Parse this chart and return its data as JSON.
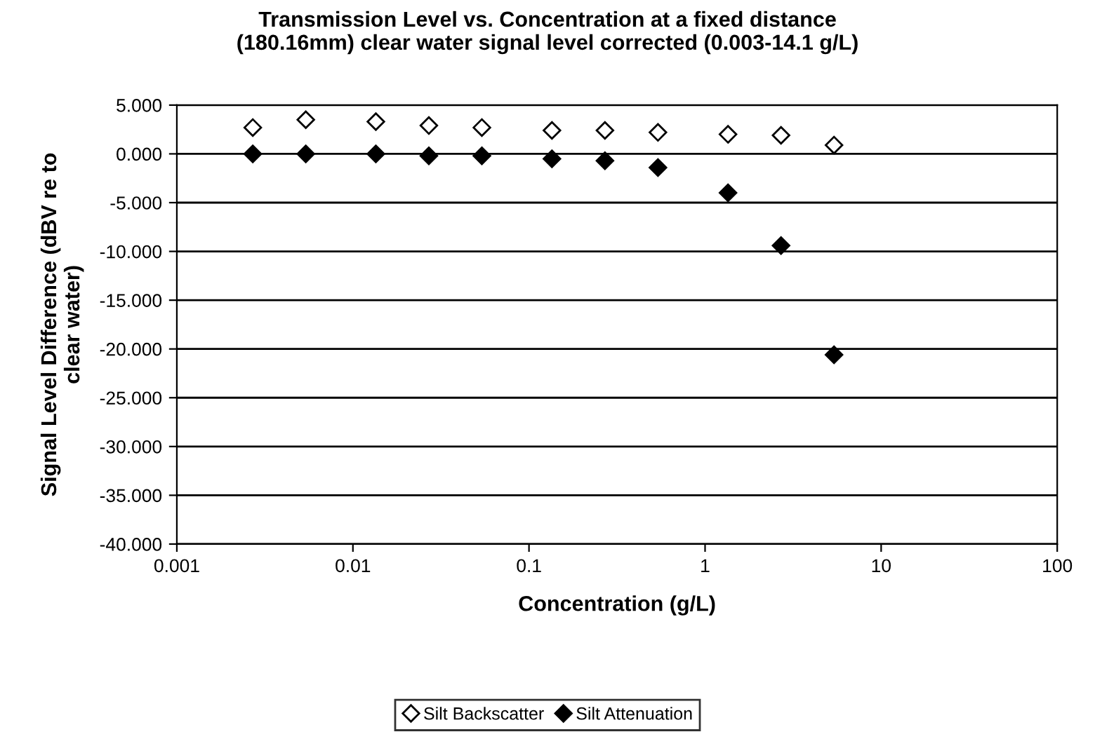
{
  "chart_data": {
    "type": "scatter",
    "title": "Transmission Level vs. Concentration at a fixed distance\n(180.16mm) clear water signal level corrected (0.003-14.1 g/L)",
    "xlabel": "Concentration (g/L)",
    "ylabel": "Signal Level Difference (dBV re to\nclear water)",
    "log": "x",
    "grid": "y",
    "legend": "bottom",
    "marker": "diamond",
    "xlim": [
      0.001,
      100
    ],
    "xticks": [
      0.001,
      0.01,
      0.1,
      1,
      10,
      100
    ],
    "ylim": [
      -40,
      5
    ],
    "yticks": [
      {
        "value": 5,
        "label": "5.000"
      },
      {
        "value": 0,
        "label": "0.000"
      },
      {
        "value": -5,
        "label": "-5.000"
      },
      {
        "value": -10,
        "label": "-10.000"
      },
      {
        "value": -15,
        "label": "-15.000"
      },
      {
        "value": -20,
        "label": "-20.000"
      },
      {
        "value": -25,
        "label": "-25.000"
      },
      {
        "value": -30,
        "label": "-30.000"
      },
      {
        "value": -35,
        "label": "-35.000"
      },
      {
        "value": -40,
        "label": "-40.000"
      }
    ],
    "x": [
      0.0027,
      0.0054,
      0.0135,
      0.027,
      0.054,
      0.135,
      0.27,
      0.54,
      1.35,
      2.7,
      5.4
    ],
    "series": [
      {
        "name": "Silt Backscatter",
        "color": "#ffffff",
        "values": [
          2.7,
          3.5,
          3.3,
          2.9,
          2.7,
          2.4,
          2.4,
          2.2,
          2.0,
          1.9,
          0.9
        ]
      },
      {
        "name": "Silt Attenuation",
        "color": "#000000",
        "values": [
          0.0,
          0.0,
          0.0,
          -0.2,
          -0.2,
          -0.5,
          -0.7,
          -1.4,
          -4.0,
          -9.4,
          -20.6
        ]
      }
    ]
  }
}
